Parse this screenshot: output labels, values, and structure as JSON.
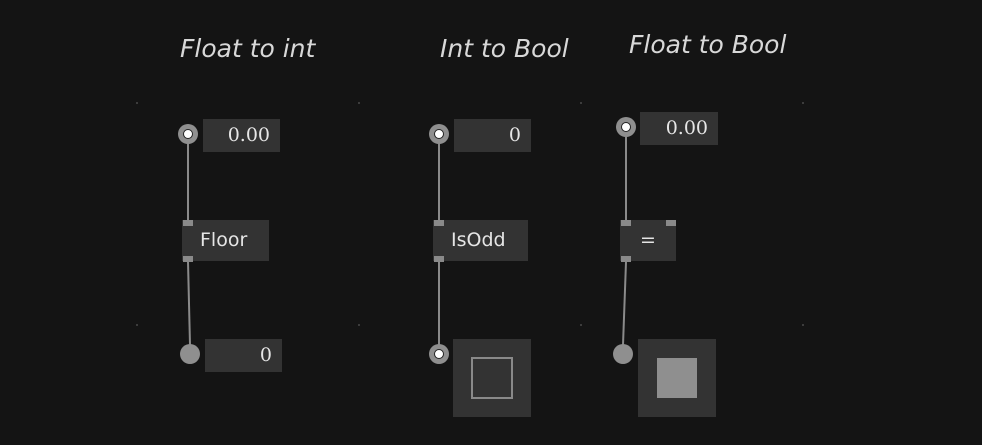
{
  "groups": [
    {
      "title": "Float to int",
      "input_value": "0.00",
      "node_label": "Floor",
      "output_value": "0"
    },
    {
      "title": "Int to Bool",
      "input_value": "0",
      "node_label": "IsOdd",
      "output_state": "off"
    },
    {
      "title": "Float to Bool",
      "input_value": "0.00",
      "node_label": "=",
      "output_state": "on"
    }
  ],
  "colors": {
    "background": "#141414",
    "box": "#333333",
    "port": "#8f8f8f",
    "wire": "#8a8a8a",
    "text": "#e6e6e6"
  }
}
